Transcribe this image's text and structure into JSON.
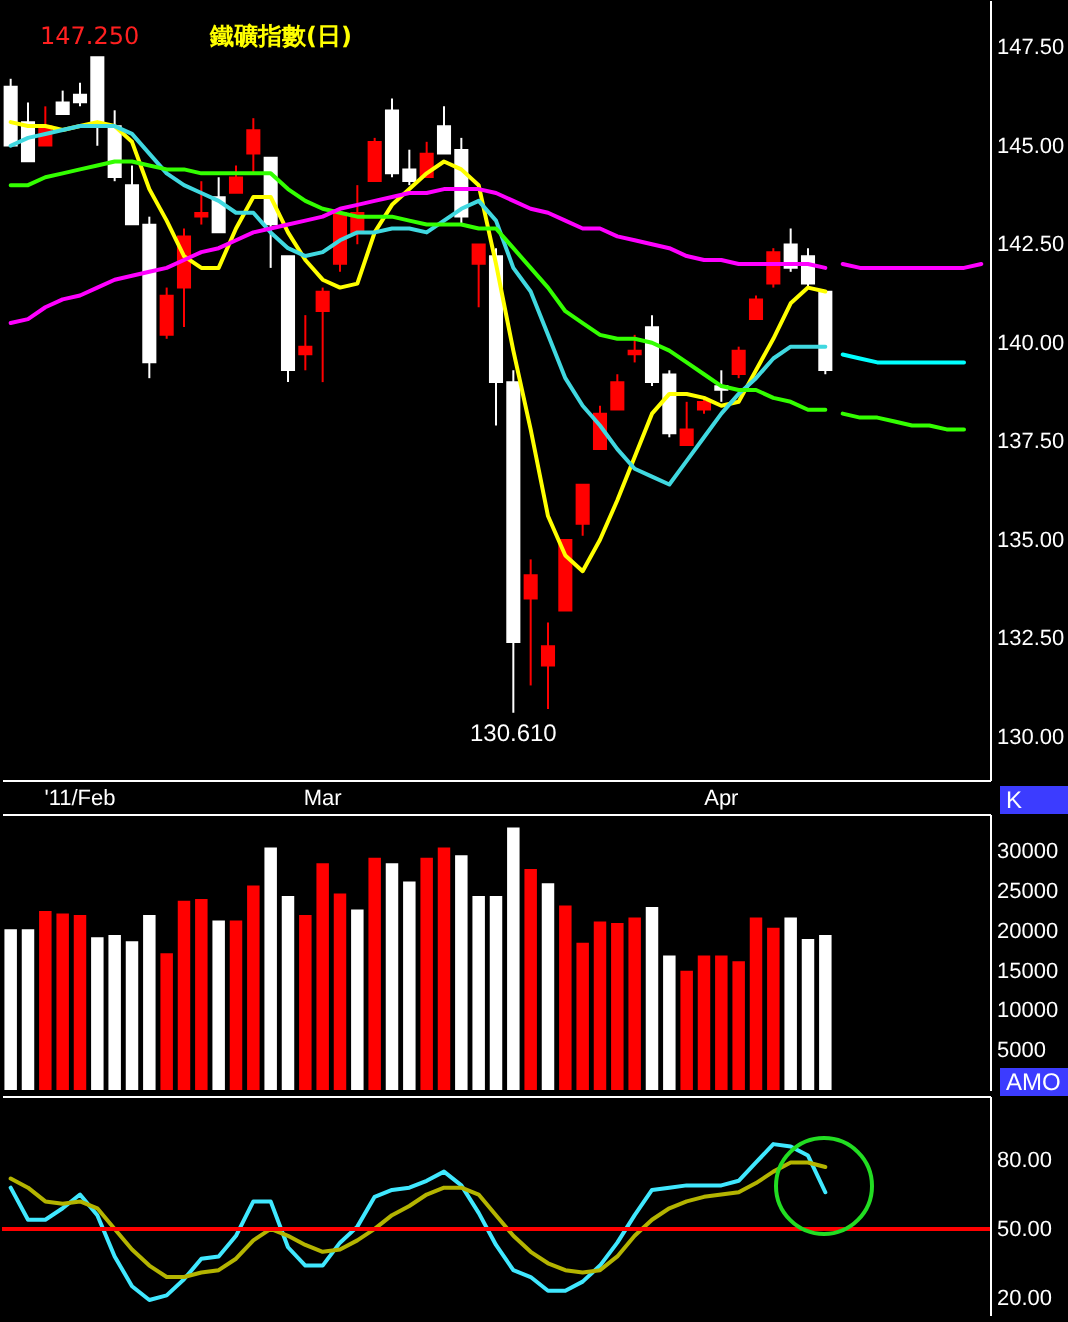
{
  "chart_data": [
    {
      "type": "candlestick",
      "title": "鐵礦指數(日)",
      "categories": [
        null,
        null,
        null,
        null,
        "'11/Feb",
        null,
        null,
        null,
        null,
        null,
        null,
        null,
        null,
        null,
        null,
        null,
        null,
        null,
        "Mar",
        null,
        null,
        null,
        null,
        null,
        null,
        null,
        null,
        null,
        null,
        null,
        null,
        null,
        null,
        null,
        null,
        null,
        null,
        null,
        null,
        null,
        null,
        "Apr",
        null,
        null,
        null,
        null,
        null,
        null,
        null,
        null,
        null,
        null,
        null,
        null,
        null,
        null,
        null
      ],
      "ohlc": [
        [
          146.5,
          146.7,
          145.0,
          145.0
        ],
        [
          145.6,
          146.1,
          144.6,
          144.6
        ],
        [
          145.0,
          146.0,
          145.0,
          145.5
        ],
        [
          146.1,
          146.4,
          145.8,
          145.8
        ],
        [
          146.3,
          146.6,
          146.0,
          146.1
        ],
        [
          147.25,
          147.25,
          145.0,
          145.5
        ],
        [
          145.5,
          145.9,
          144.1,
          144.2
        ],
        [
          144.0,
          144.5,
          143.0,
          143.0
        ],
        [
          143.0,
          143.2,
          139.1,
          139.5
        ],
        [
          140.2,
          141.4,
          140.1,
          141.2
        ],
        [
          141.4,
          142.9,
          140.4,
          142.7
        ],
        [
          143.2,
          144.1,
          143.0,
          143.3
        ],
        [
          143.7,
          144.2,
          142.8,
          142.8
        ],
        [
          143.8,
          144.5,
          143.8,
          144.2
        ],
        [
          144.8,
          145.7,
          144.3,
          145.4
        ],
        [
          144.7,
          144.7,
          141.9,
          143.0
        ],
        [
          142.2,
          142.2,
          139.0,
          139.3
        ],
        [
          139.7,
          140.7,
          139.3,
          139.9
        ],
        [
          140.8,
          141.4,
          139.0,
          141.3
        ],
        [
          142.0,
          143.4,
          141.8,
          143.3
        ],
        [
          142.8,
          144.0,
          142.5,
          143.3
        ],
        [
          144.1,
          145.2,
          144.1,
          145.1
        ],
        [
          145.9,
          146.2,
          144.2,
          144.3
        ],
        [
          144.4,
          144.9,
          144.0,
          144.1
        ],
        [
          144.2,
          145.1,
          144.2,
          144.8
        ],
        [
          145.5,
          146.0,
          144.8,
          144.8
        ],
        [
          144.9,
          145.2,
          143.0,
          143.2
        ],
        [
          142.0,
          142.5,
          140.9,
          142.5
        ],
        [
          142.2,
          142.4,
          137.9,
          139.0
        ],
        [
          139.0,
          139.3,
          130.61,
          132.4
        ],
        [
          133.5,
          134.5,
          131.3,
          134.1
        ],
        [
          131.8,
          132.9,
          130.7,
          132.3
        ],
        [
          133.2,
          135.0,
          133.2,
          135.0
        ],
        [
          135.4,
          136.4,
          135.1,
          136.4
        ],
        [
          137.3,
          138.4,
          137.3,
          138.2
        ],
        [
          138.3,
          139.2,
          138.3,
          139.0
        ],
        [
          139.7,
          140.2,
          139.5,
          139.8
        ],
        [
          140.4,
          140.7,
          138.9,
          139.0
        ],
        [
          139.2,
          139.3,
          137.6,
          137.7
        ],
        [
          137.4,
          138.5,
          137.4,
          137.8
        ],
        [
          138.3,
          138.6,
          138.2,
          138.5
        ],
        [
          138.9,
          139.3,
          138.5,
          138.8
        ],
        [
          139.2,
          139.9,
          139.1,
          139.8
        ],
        [
          140.6,
          141.2,
          140.6,
          141.1
        ],
        [
          141.5,
          142.4,
          141.4,
          142.3
        ],
        [
          142.5,
          142.9,
          141.8,
          141.9
        ],
        [
          142.2,
          142.4,
          141.4,
          141.5
        ],
        [
          141.3,
          141.3,
          139.2,
          139.3
        ],
        null,
        null,
        null,
        null,
        null,
        null,
        null,
        null,
        null
      ],
      "colors": [
        "#ffffff",
        "#ffffff",
        "#ff0000",
        "#ffffff",
        "#ffffff",
        "#ffffff",
        "#ffffff",
        "#ffffff",
        "#ffffff",
        "#ff0000",
        "#ff0000",
        "#ff0000",
        "#ffffff",
        "#ff0000",
        "#ff0000",
        "#ffffff",
        "#ffffff",
        "#ff0000",
        "#ff0000",
        "#ff0000",
        "#ff0000",
        "#ff0000",
        "#ffffff",
        "#ffffff",
        "#ff0000",
        "#ffffff",
        "#ffffff",
        "#ff0000",
        "#ffffff",
        "#ffffff",
        "#ff0000",
        "#ff0000",
        "#ff0000",
        "#ff0000",
        "#ff0000",
        "#ff0000",
        "#ff0000",
        "#ffffff",
        "#ffffff",
        "#ff0000",
        "#ff0000",
        "#ffffff",
        "#ff0000",
        "#ff0000",
        "#ff0000",
        "#ffffff",
        "#ffffff",
        "#ffffff",
        null,
        null,
        null,
        null,
        null,
        null,
        null,
        null,
        null
      ],
      "series": [
        {
          "type": "line",
          "color": "#ffff00",
          "values": [
            145.6,
            145.5,
            145.5,
            145.4,
            145.5,
            145.6,
            145.5,
            145.1,
            143.9,
            143.1,
            142.2,
            141.9,
            141.9,
            142.9,
            143.7,
            143.7,
            142.8,
            142.1,
            141.6,
            141.4,
            141.5,
            142.8,
            143.5,
            143.9,
            144.3,
            144.6,
            144.4,
            144.0,
            142.0,
            139.8,
            137.8,
            135.6,
            134.6,
            134.2,
            135.0,
            136.0,
            137.1,
            138.2,
            138.7,
            138.7,
            138.6,
            138.4,
            138.5,
            139.3,
            140.1,
            141.0,
            141.4,
            141.3,
            null,
            null,
            null,
            null,
            null,
            null,
            null,
            null,
            null
          ]
        },
        {
          "type": "line",
          "color": "#40d8e0",
          "values": [
            145.0,
            145.2,
            145.3,
            145.4,
            145.5,
            145.5,
            145.5,
            145.3,
            144.8,
            144.3,
            144.0,
            143.8,
            143.6,
            143.3,
            143.3,
            142.8,
            142.4,
            142.2,
            142.3,
            142.6,
            142.8,
            142.8,
            142.9,
            142.9,
            142.8,
            143.1,
            143.4,
            143.6,
            143.1,
            141.9,
            141.3,
            140.2,
            139.1,
            138.4,
            137.9,
            137.3,
            136.8,
            136.6,
            136.4,
            137.0,
            137.6,
            138.2,
            138.7,
            139.1,
            139.6,
            139.9,
            139.9,
            139.9,
            null,
            null,
            null,
            null,
            null,
            null,
            null,
            null,
            null
          ]
        },
        {
          "type": "line",
          "color": "#33ff00",
          "values": [
            144.0,
            144.0,
            144.2,
            144.3,
            144.4,
            144.5,
            144.6,
            144.6,
            144.5,
            144.4,
            144.4,
            144.3,
            144.3,
            144.3,
            144.3,
            144.3,
            143.9,
            143.6,
            143.4,
            143.3,
            143.2,
            143.2,
            143.2,
            143.1,
            143.0,
            143.0,
            143.0,
            142.9,
            142.9,
            142.4,
            141.9,
            141.4,
            140.8,
            140.5,
            140.2,
            140.1,
            140.1,
            140.0,
            139.8,
            139.5,
            139.2,
            138.9,
            138.8,
            138.8,
            138.6,
            138.5,
            138.3,
            138.3,
            null,
            null,
            null,
            null,
            null,
            null,
            null,
            null,
            null
          ]
        },
        {
          "type": "line",
          "color": "#ff00ff",
          "values": [
            140.5,
            140.6,
            140.9,
            141.1,
            141.2,
            141.4,
            141.6,
            141.7,
            141.8,
            141.9,
            142.1,
            142.3,
            142.4,
            142.6,
            142.8,
            142.9,
            143.0,
            143.1,
            143.2,
            143.4,
            143.5,
            143.6,
            143.7,
            143.8,
            143.8,
            143.9,
            143.9,
            143.9,
            143.8,
            143.6,
            143.4,
            143.3,
            143.1,
            142.9,
            142.9,
            142.7,
            142.6,
            142.5,
            142.4,
            142.2,
            142.1,
            142.1,
            142.0,
            142.0,
            142.0,
            142.0,
            142.0,
            141.9,
            null,
            null,
            null,
            null,
            null,
            null,
            null,
            null,
            null
          ]
        },
        {
          "type": "line",
          "color": "#ff00ff",
          "values": [
            null,
            null,
            null,
            null,
            null,
            null,
            null,
            null,
            null,
            null,
            null,
            null,
            null,
            null,
            null,
            null,
            null,
            null,
            null,
            null,
            null,
            null,
            null,
            null,
            null,
            null,
            null,
            null,
            null,
            null,
            null,
            null,
            null,
            null,
            null,
            null,
            null,
            null,
            null,
            null,
            null,
            null,
            null,
            null,
            null,
            null,
            null,
            null,
            142.0,
            141.9,
            141.9,
            141.9,
            141.9,
            141.9,
            141.9,
            141.9,
            142.0
          ]
        },
        {
          "type": "line",
          "color": "#00ffff",
          "values": [
            null,
            null,
            null,
            null,
            null,
            null,
            null,
            null,
            null,
            null,
            null,
            null,
            null,
            null,
            null,
            null,
            null,
            null,
            null,
            null,
            null,
            null,
            null,
            null,
            null,
            null,
            null,
            null,
            null,
            null,
            null,
            null,
            null,
            null,
            null,
            null,
            null,
            null,
            null,
            null,
            null,
            null,
            null,
            null,
            null,
            null,
            null,
            null,
            139.7,
            139.6,
            139.5,
            139.5,
            139.5,
            139.5,
            139.5,
            139.5,
            null
          ]
        },
        {
          "type": "line",
          "color": "#33ff00",
          "values": [
            null,
            null,
            null,
            null,
            null,
            null,
            null,
            null,
            null,
            null,
            null,
            null,
            null,
            null,
            null,
            null,
            null,
            null,
            null,
            null,
            null,
            null,
            null,
            null,
            null,
            null,
            null,
            null,
            null,
            null,
            null,
            null,
            null,
            null,
            null,
            null,
            null,
            null,
            null,
            null,
            null,
            null,
            null,
            null,
            null,
            null,
            null,
            null,
            138.2,
            138.1,
            138.1,
            138.0,
            137.9,
            137.9,
            137.8,
            137.8,
            null
          ]
        }
      ],
      "ylim": [
        128.9,
        148.7
      ],
      "yticks": [
        {
          "value": 130,
          "label": "130.00"
        },
        {
          "value": 132.5,
          "label": "132.50"
        },
        {
          "value": 135,
          "label": "135.00"
        },
        {
          "value": 137.5,
          "label": "137.50"
        },
        {
          "value": 140,
          "label": "140.00"
        },
        {
          "value": 142.5,
          "label": "142.50"
        },
        {
          "value": 145,
          "label": "145.00"
        },
        {
          "value": 147.5,
          "label": "147.50"
        }
      ],
      "annotations": [
        "147.250",
        {
          "text": "130.610",
          "y": 130.61
        },
        "K"
      ]
    },
    {
      "type": "bar",
      "categories": [
        null,
        null,
        null,
        null,
        null,
        null,
        null,
        null,
        null,
        null,
        null,
        null,
        null,
        null,
        null,
        null,
        null,
        null,
        null,
        null,
        null,
        null,
        null,
        null,
        null,
        null,
        null,
        null,
        null,
        null,
        null,
        null,
        null,
        null,
        null,
        null,
        null,
        null,
        null,
        null,
        null,
        null,
        null,
        null,
        null,
        null,
        null,
        null,
        null,
        null,
        null,
        null,
        null,
        null,
        null,
        null,
        null
      ],
      "values": [
        20200,
        20200,
        22500,
        22200,
        22000,
        19200,
        19500,
        18700,
        22000,
        17200,
        23800,
        24000,
        21300,
        21300,
        25700,
        30500,
        24400,
        22000,
        28500,
        24700,
        22700,
        29200,
        28500,
        26200,
        29200,
        30500,
        29500,
        24400,
        24400,
        33000,
        27800,
        26000,
        23200,
        18500,
        21200,
        21000,
        21700,
        23000,
        16900,
        15000,
        16900,
        16900,
        16200,
        21700,
        20400,
        21700,
        19000,
        19500,
        null,
        null,
        null,
        null,
        null,
        null,
        null,
        null,
        null
      ],
      "colors": [
        "#ffffff",
        "#ffffff",
        "#ff0000",
        "#ff0000",
        "#ff0000",
        "#ffffff",
        "#ffffff",
        "#ffffff",
        "#ffffff",
        "#ff0000",
        "#ff0000",
        "#ff0000",
        "#ffffff",
        "#ff0000",
        "#ff0000",
        "#ffffff",
        "#ffffff",
        "#ff0000",
        "#ff0000",
        "#ff0000",
        "#ffffff",
        "#ff0000",
        "#ffffff",
        "#ffffff",
        "#ff0000",
        "#ff0000",
        "#ffffff",
        "#ffffff",
        "#ffffff",
        "#ffffff",
        "#ff0000",
        "#ffffff",
        "#ff0000",
        "#ff0000",
        "#ff0000",
        "#ff0000",
        "#ff0000",
        "#ffffff",
        "#ffffff",
        "#ff0000",
        "#ff0000",
        "#ff0000",
        "#ff0000",
        "#ff0000",
        "#ff0000",
        "#ffffff",
        "#ffffff",
        "#ffffff",
        null,
        null,
        null,
        null,
        null,
        null,
        null,
        null,
        null
      ],
      "ylim": [
        0,
        34700
      ],
      "yticks": [
        5000,
        10000,
        15000,
        20000,
        25000,
        30000
      ],
      "tick_labels": "y",
      "annotations": [
        "AMO"
      ]
    },
    {
      "type": "line",
      "categories": [
        null,
        null,
        null,
        null,
        null,
        null,
        null,
        null,
        null,
        null,
        null,
        null,
        null,
        null,
        null,
        null,
        null,
        null,
        null,
        null,
        null,
        null,
        null,
        null,
        null,
        null,
        null,
        null,
        null,
        null,
        null,
        null,
        null,
        null,
        null,
        null,
        null,
        null,
        null,
        null,
        null,
        null,
        null,
        null,
        null,
        null,
        null,
        null,
        null,
        null,
        null,
        null,
        null,
        null,
        null,
        null,
        null
      ],
      "series": [
        {
          "color": "#40e8ff",
          "values": [
            68,
            54,
            54,
            59,
            65,
            56,
            38,
            25,
            19,
            21,
            28,
            37,
            38,
            47,
            62,
            62,
            42,
            34,
            34,
            44,
            51,
            64,
            67,
            68,
            71,
            75,
            69,
            57,
            43,
            32,
            29,
            23,
            23,
            27,
            34,
            44,
            56,
            67,
            68,
            69,
            69,
            69,
            71,
            79,
            87,
            86,
            82,
            66,
            null,
            null,
            null,
            null,
            null,
            null,
            null,
            null,
            null
          ]
        },
        {
          "color": "#b4b400",
          "values": [
            72,
            68,
            62,
            61,
            62,
            59,
            50,
            41,
            34,
            29,
            29,
            31,
            32,
            37,
            45,
            50,
            47,
            43,
            40,
            41,
            45,
            50,
            56,
            60,
            65,
            68,
            68,
            65,
            56,
            47,
            40,
            35,
            32,
            31,
            32,
            38,
            47,
            54,
            59,
            62,
            64,
            65,
            66,
            70,
            75,
            79,
            79,
            77,
            null,
            null,
            null,
            null,
            null,
            null,
            null,
            null,
            null
          ]
        }
      ],
      "ylim": [
        12,
        108
      ],
      "yticks": [
        {
          "value": 20,
          "label": "20.00"
        },
        {
          "value": 50,
          "label": "50.00"
        },
        {
          "value": 80,
          "label": "80.00"
        }
      ],
      "tick_labels": "y",
      "ref_lines": [
        {
          "axis": "y",
          "value": 50,
          "color": "#ff0000"
        }
      ]
    }
  ]
}
